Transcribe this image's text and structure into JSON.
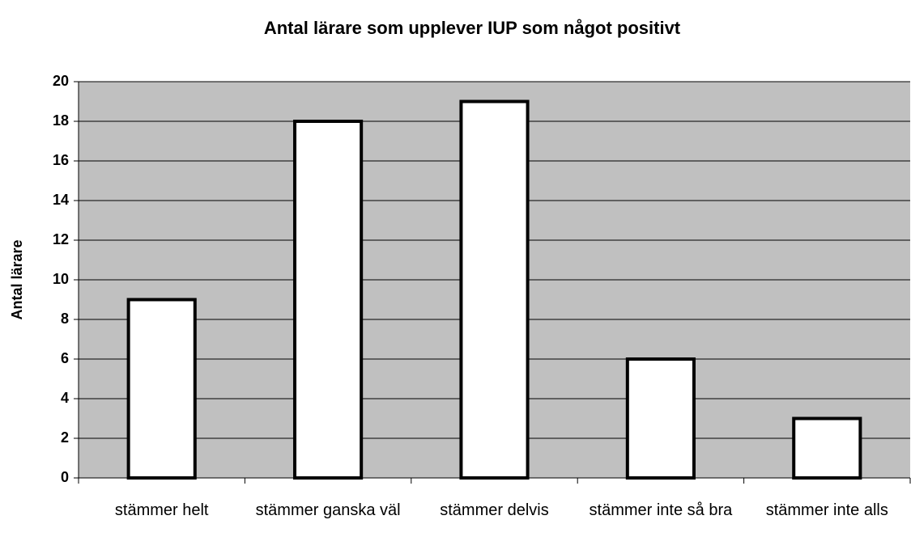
{
  "chart_data": {
    "type": "bar",
    "title": "Antal lärare som upplever IUP som något positivt",
    "y_label": "Antal lärare",
    "categories": [
      "stämmer helt",
      "stämmer ganska väl",
      "stämmer delvis",
      "stämmer inte så bra",
      "stämmer inte alls"
    ],
    "values": [
      9,
      18,
      19,
      6,
      3
    ],
    "color": "#ffffff",
    "background": "#c0c0c0",
    "ylim": [
      0,
      20
    ],
    "yticks": [
      0,
      2,
      4,
      6,
      8,
      10,
      12,
      14,
      16,
      18,
      20
    ],
    "grid": true
  }
}
